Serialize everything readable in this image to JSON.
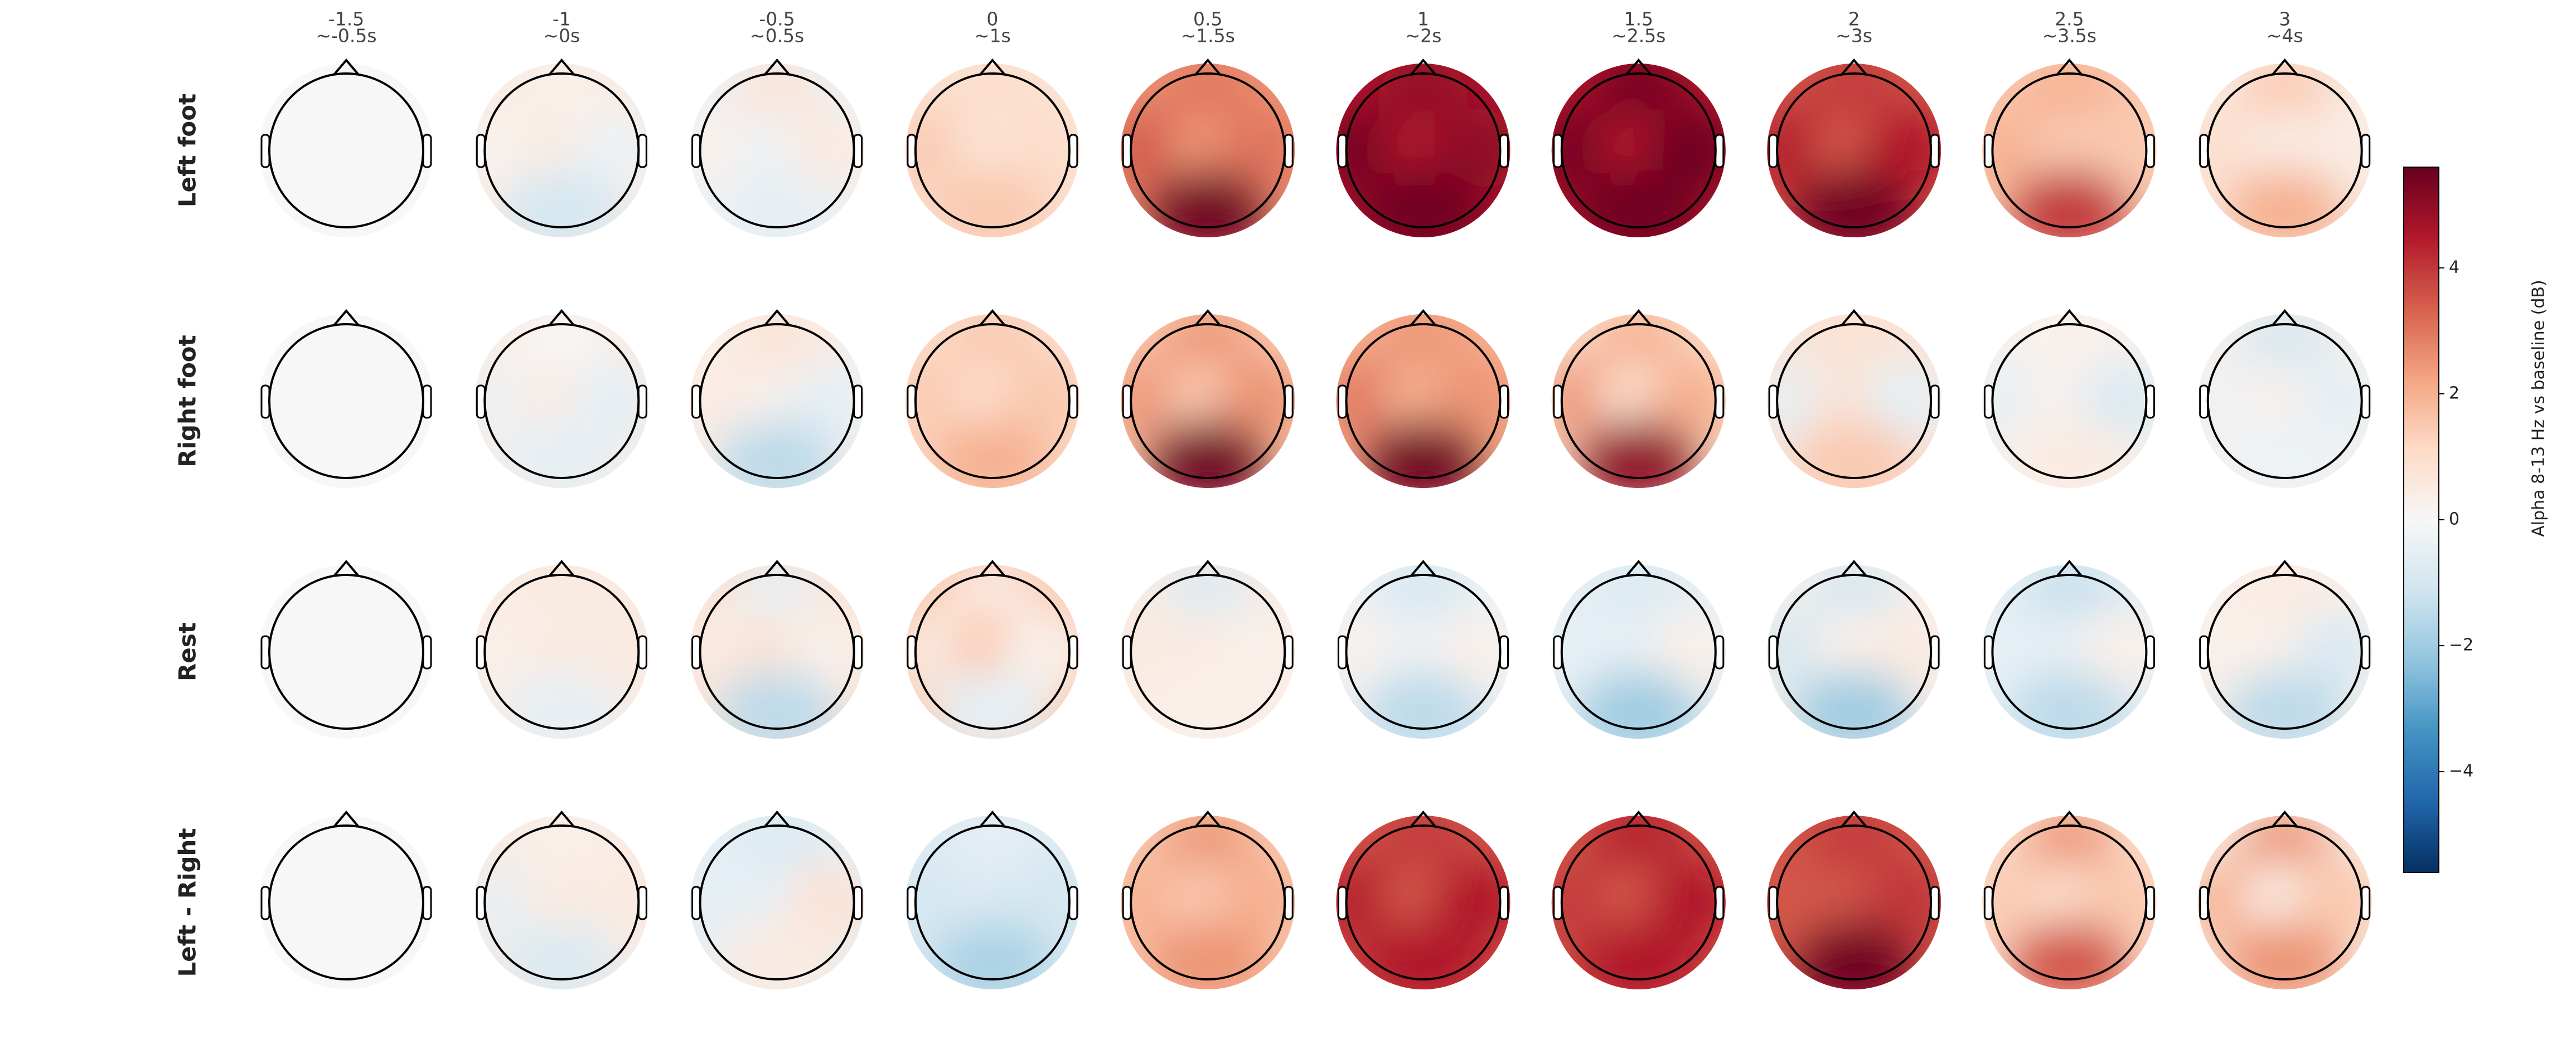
{
  "chart_data": {
    "type": "topomap-grid",
    "columns": [
      {
        "label": "-1.5",
        "sublabel": "~-0.5s"
      },
      {
        "label": "-1",
        "sublabel": "~0s"
      },
      {
        "label": "-0.5",
        "sublabel": "~0.5s"
      },
      {
        "label": "0",
        "sublabel": "~1s"
      },
      {
        "label": "0.5",
        "sublabel": "~1.5s"
      },
      {
        "label": "1",
        "sublabel": "~2s"
      },
      {
        "label": "1.5",
        "sublabel": "~2.5s"
      },
      {
        "label": "2",
        "sublabel": "~3s"
      },
      {
        "label": "2.5",
        "sublabel": "~3.5s"
      },
      {
        "label": "3",
        "sublabel": "~4s"
      }
    ],
    "rows": [
      "Left foot",
      "Right foot",
      "Rest",
      "Left - Right"
    ],
    "maps": [
      [
        [
          0,
          0,
          0,
          0,
          0
        ],
        [
          0.3,
          0.2,
          0.5,
          -0.3,
          -1
        ],
        [
          0.8,
          0.3,
          -0.3,
          0.5,
          -0.5
        ],
        [
          1,
          1.5,
          0.8,
          1,
          1.5
        ],
        [
          3,
          3.5,
          2.5,
          3,
          5.5
        ],
        [
          5,
          5.5,
          4.5,
          5,
          5.5
        ],
        [
          5.5,
          5.5,
          4.5,
          5.5,
          5.5
        ],
        [
          4,
          4.5,
          3.5,
          4.5,
          5.5
        ],
        [
          2,
          2,
          1.5,
          1.5,
          4
        ],
        [
          1.5,
          1,
          0.5,
          0.5,
          2
        ]
      ],
      [
        [
          0,
          0,
          0,
          0,
          0
        ],
        [
          0,
          -0.3,
          0.5,
          -0.5,
          -0.5
        ],
        [
          0.8,
          0.5,
          0.3,
          -0.5,
          -1.5
        ],
        [
          1.5,
          1.5,
          1,
          1.5,
          2
        ],
        [
          2.5,
          2.5,
          1.5,
          2.5,
          5.5
        ],
        [
          2.5,
          3,
          2,
          2.5,
          5.5
        ],
        [
          2,
          2.5,
          1,
          2,
          5
        ],
        [
          0.8,
          -0.5,
          0.8,
          -0.5,
          1.5
        ],
        [
          0.3,
          -0.5,
          0.2,
          -0.8,
          0.5
        ],
        [
          -1,
          -0.3,
          0.3,
          -0.5,
          -0.3
        ]
      ],
      [
        [
          0,
          0,
          0,
          0,
          0
        ],
        [
          0.5,
          0.3,
          0.5,
          0.5,
          -0.5
        ],
        [
          -0.5,
          0.5,
          0.8,
          0.3,
          -1.5
        ],
        [
          0.5,
          0.5,
          1.5,
          0.3,
          -0.5
        ],
        [
          -0.8,
          0.5,
          0.5,
          0.3,
          0.3
        ],
        [
          -1,
          0.3,
          -0.3,
          0.3,
          -1.5
        ],
        [
          -0.8,
          -0.5,
          -0.5,
          0.3,
          -2
        ],
        [
          -1,
          -1,
          0.3,
          0.5,
          -2
        ],
        [
          -1.3,
          -0.5,
          -0.5,
          0.3,
          -1.5
        ],
        [
          0.5,
          0.3,
          0.3,
          -0.8,
          -1.5
        ]
      ],
      [
        [
          0,
          0,
          0,
          0,
          0
        ],
        [
          0.3,
          -0.5,
          0.5,
          0.5,
          -0.8
        ],
        [
          -0.8,
          -0.5,
          -0.5,
          0.8,
          0.5
        ],
        [
          -0.5,
          -1,
          -0.8,
          -1,
          -1.8
        ],
        [
          2.5,
          2,
          1.5,
          2,
          2.5
        ],
        [
          4,
          4.5,
          3.5,
          4.5,
          4.5
        ],
        [
          4.5,
          4,
          3.5,
          4.5,
          4.5
        ],
        [
          4,
          3.5,
          3.5,
          4,
          5.5
        ],
        [
          2.5,
          1.5,
          1,
          1.5,
          3.5
        ],
        [
          2.5,
          2,
          0.5,
          1.5,
          2.5
        ]
      ]
    ],
    "clim": [
      -5.6,
      5.6
    ],
    "colormap": [
      "#053061",
      "#2166ac",
      "#4393c3",
      "#92c5de",
      "#d1e5f0",
      "#f7f7f7",
      "#fddbc7",
      "#f4a582",
      "#d6604d",
      "#b2182b",
      "#67001f"
    ],
    "colorbar_label": "Alpha 8-13 Hz vs baseline (dB)",
    "colorbar_ticks": [
      {
        "value": -4,
        "label": "−4"
      },
      {
        "value": -2,
        "label": "−2"
      },
      0,
      2,
      4
    ]
  }
}
